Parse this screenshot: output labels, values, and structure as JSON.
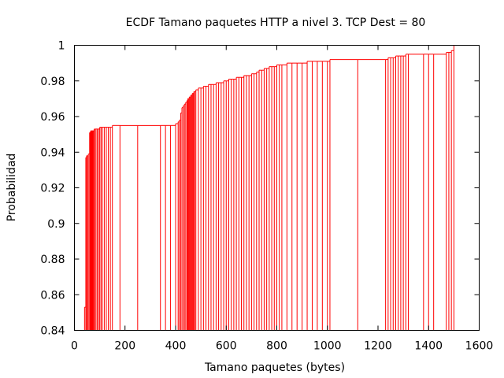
{
  "chart_data": {
    "type": "line",
    "title": "ECDF Tamano paquetes HTTP a nivel 3. TCP Dest = 80",
    "xlabel": "Tamano paquetes (bytes)",
    "ylabel": "Probabilidad",
    "xlim": [
      0,
      1600
    ],
    "ylim": [
      0.84,
      1.0
    ],
    "xticks": [
      0,
      200,
      400,
      600,
      800,
      1000,
      1200,
      1400,
      1600
    ],
    "xtick_labels": [
      "0",
      "200",
      "400",
      "600",
      "800",
      "1000",
      "1200",
      "1400",
      "1600"
    ],
    "yticks": [
      0.84,
      0.86,
      0.88,
      0.9,
      0.92,
      0.94,
      0.96,
      0.98,
      1.0
    ],
    "ytick_labels": [
      "0.84",
      "0.86",
      "0.88",
      "0.9",
      "0.92",
      "0.94",
      "0.96",
      "0.98",
      "1"
    ],
    "grid": false,
    "legend": "none",
    "series_color": "#ff0000",
    "series": [
      {
        "style": "impulse-step",
        "x": [
          40,
          45,
          48,
          52,
          55,
          60,
          62,
          64,
          66,
          68,
          70,
          72,
          75,
          78,
          80,
          85,
          90,
          95,
          100,
          105,
          110,
          118,
          126,
          134,
          142,
          150,
          180,
          250,
          340,
          360,
          380,
          400,
          410,
          415,
          420,
          425,
          430,
          435,
          440,
          445,
          448,
          451,
          454,
          457,
          460,
          463,
          466,
          469,
          472,
          475,
          480,
          490,
          500,
          510,
          520,
          530,
          540,
          550,
          560,
          570,
          580,
          590,
          600,
          610,
          620,
          630,
          640,
          650,
          660,
          670,
          680,
          690,
          700,
          710,
          720,
          730,
          740,
          750,
          760,
          770,
          780,
          790,
          800,
          810,
          820,
          840,
          860,
          880,
          900,
          920,
          940,
          960,
          980,
          1000,
          1010,
          1120,
          1230,
          1240,
          1250,
          1260,
          1270,
          1280,
          1290,
          1300,
          1310,
          1320,
          1380,
          1400,
          1420,
          1470,
          1480,
          1490,
          1500
        ],
        "y": [
          0.853,
          0.937,
          0.938,
          0.938,
          0.939,
          0.951,
          0.951,
          0.952,
          0.952,
          0.952,
          0.952,
          0.952,
          0.952,
          0.953,
          0.953,
          0.953,
          0.953,
          0.953,
          0.954,
          0.954,
          0.954,
          0.954,
          0.954,
          0.954,
          0.954,
          0.955,
          0.955,
          0.955,
          0.955,
          0.955,
          0.955,
          0.956,
          0.957,
          0.958,
          0.962,
          0.965,
          0.966,
          0.967,
          0.968,
          0.969,
          0.97,
          0.97,
          0.971,
          0.971,
          0.972,
          0.972,
          0.973,
          0.973,
          0.974,
          0.974,
          0.975,
          0.976,
          0.976,
          0.977,
          0.977,
          0.978,
          0.978,
          0.978,
          0.979,
          0.979,
          0.979,
          0.98,
          0.98,
          0.981,
          0.981,
          0.981,
          0.982,
          0.982,
          0.982,
          0.983,
          0.983,
          0.983,
          0.984,
          0.984,
          0.985,
          0.986,
          0.986,
          0.987,
          0.987,
          0.988,
          0.988,
          0.988,
          0.989,
          0.989,
          0.989,
          0.99,
          0.99,
          0.99,
          0.99,
          0.991,
          0.991,
          0.991,
          0.991,
          0.991,
          0.992,
          0.992,
          0.992,
          0.993,
          0.993,
          0.993,
          0.994,
          0.994,
          0.994,
          0.994,
          0.995,
          0.995,
          0.995,
          0.995,
          0.995,
          0.996,
          0.996,
          0.997,
          1.0
        ]
      }
    ]
  }
}
